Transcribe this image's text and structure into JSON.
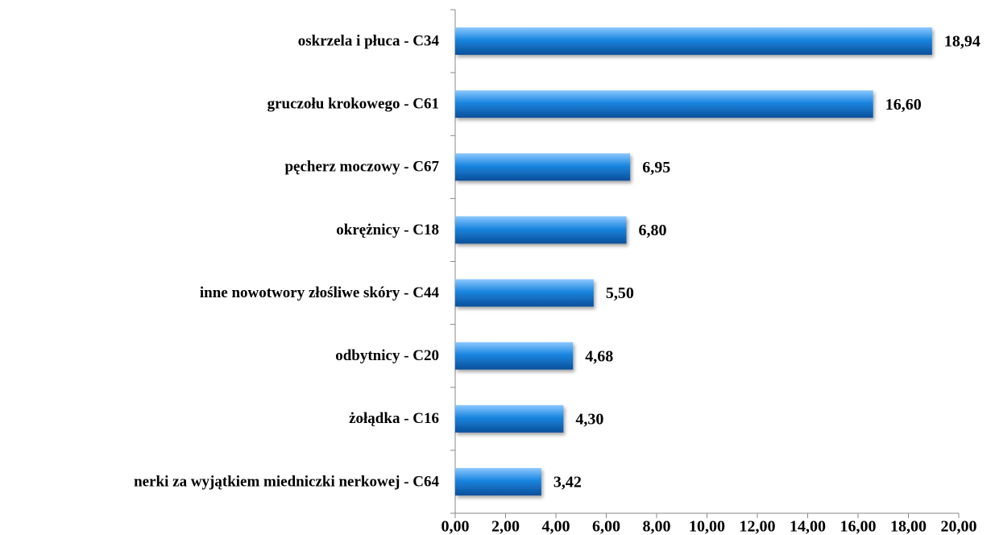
{
  "chart_data": {
    "type": "hbar",
    "categories": [
      "oskrzela i płuca - C34",
      "gruczołu krokowego - C61",
      "pęcherz moczowy - C67",
      "okrężnicy - C18",
      "inne nowotwory złośliwe skóry - C44",
      "odbytnicy - C20",
      "żołądka - C16",
      "nerki za wyjątkiem miedniczki nerkowej - C64"
    ],
    "values": [
      18.94,
      16.6,
      6.95,
      6.8,
      5.5,
      4.68,
      4.3,
      3.42
    ],
    "value_labels": [
      "18,94",
      "16,60",
      "6,95",
      "6,80",
      "5,50",
      "4,68",
      "4,30",
      "3,42"
    ],
    "color": "#1a86e0",
    "xlim": [
      0,
      20
    ],
    "xticks": [
      {
        "value": 0,
        "label": "0,00"
      },
      {
        "value": 2,
        "label": "2,00"
      },
      {
        "value": 4,
        "label": "4,00"
      },
      {
        "value": 6,
        "label": "6,00"
      },
      {
        "value": 8,
        "label": "8,00"
      },
      {
        "value": 10,
        "label": "10,00"
      },
      {
        "value": 12,
        "label": "12,00"
      },
      {
        "value": 14,
        "label": "14,00"
      },
      {
        "value": 16,
        "label": "16,00"
      },
      {
        "value": 18,
        "label": "18,00"
      },
      {
        "value": 20,
        "label": "20,00"
      }
    ]
  }
}
